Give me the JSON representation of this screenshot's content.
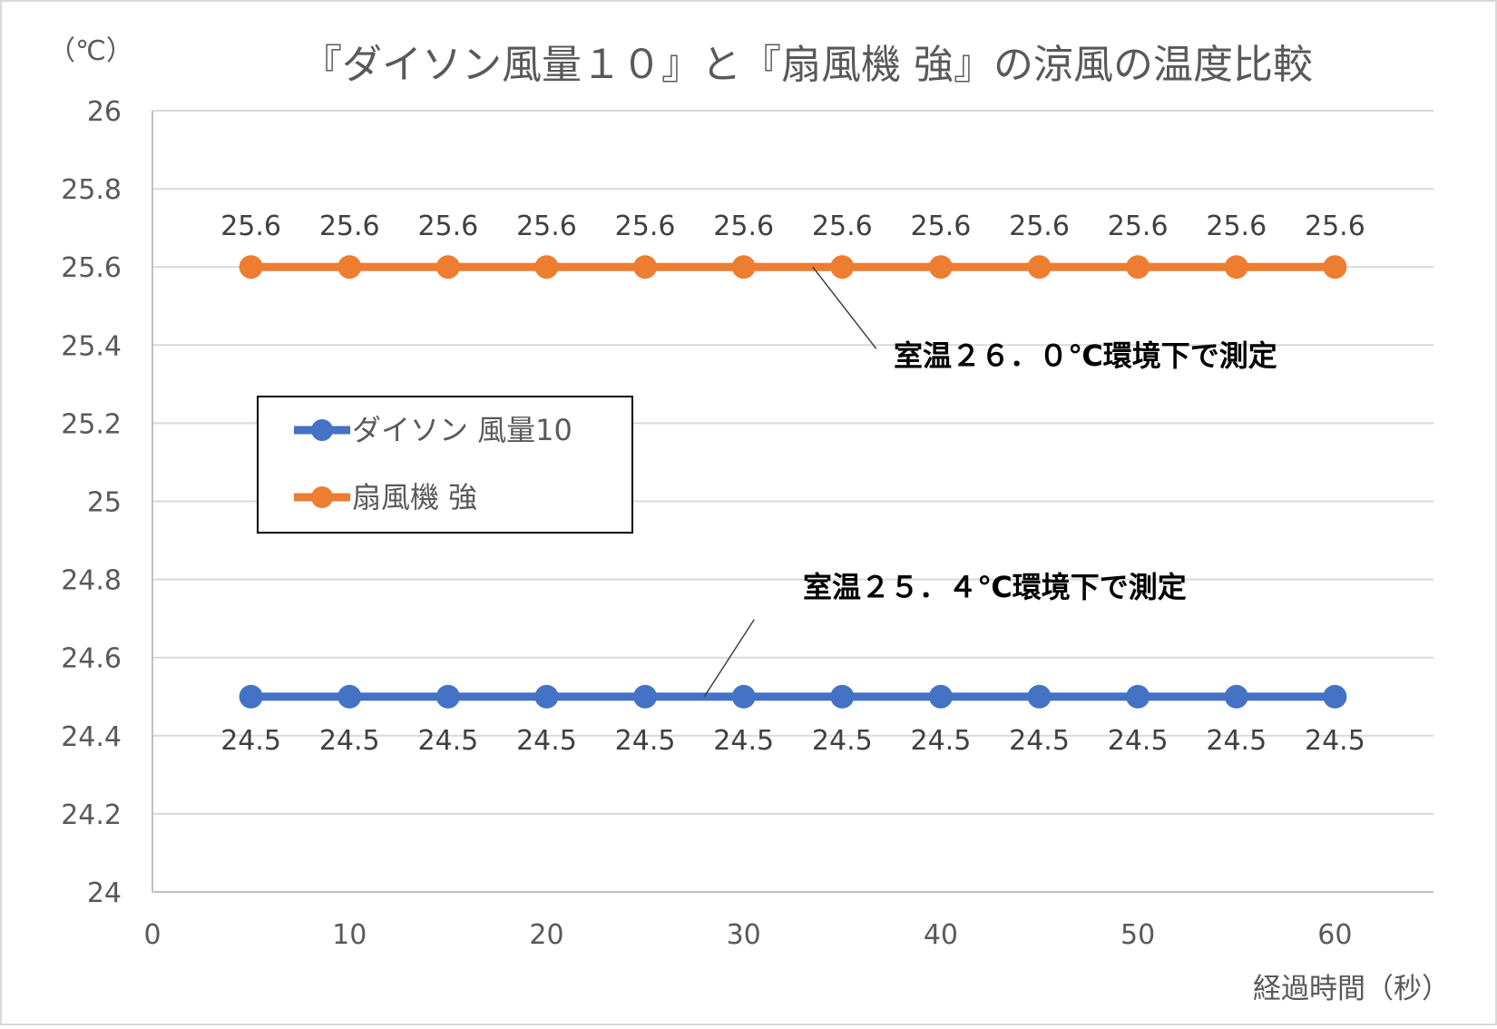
{
  "chart_data": {
    "type": "line",
    "title": "『ダイソン風量１０』と『扇風機 強』の涼風の温度比較",
    "ylabel": "（℃）",
    "xlabel": "経過時間（秒）",
    "x": [
      5,
      10,
      15,
      20,
      25,
      30,
      35,
      40,
      45,
      50,
      55,
      60
    ],
    "xlim": [
      0,
      65
    ],
    "ylim": [
      24,
      26
    ],
    "x_ticks": [
      0,
      10,
      20,
      30,
      40,
      50,
      60
    ],
    "x_tick_labels": [
      "0",
      "10",
      "20",
      "30",
      "40",
      "50",
      "60"
    ],
    "y_ticks": [
      24,
      24.2,
      24.4,
      24.6,
      24.8,
      25,
      25.2,
      25.4,
      25.6,
      25.8,
      26
    ],
    "y_tick_labels": [
      "24",
      "24.2",
      "24.4",
      "24.6",
      "24.8",
      "25",
      "25.2",
      "25.4",
      "25.6",
      "25.8",
      "26"
    ],
    "grid": true,
    "legend_position": "left",
    "series": [
      {
        "name": "ダイソン 風量10",
        "color": "#4472C4",
        "values": [
          24.5,
          24.5,
          24.5,
          24.5,
          24.5,
          24.5,
          24.5,
          24.5,
          24.5,
          24.5,
          24.5,
          24.5
        ],
        "value_labels": [
          "24.5",
          "24.5",
          "24.5",
          "24.5",
          "24.5",
          "24.5",
          "24.5",
          "24.5",
          "24.5",
          "24.5",
          "24.5",
          "24.5"
        ],
        "label_position": "below"
      },
      {
        "name": "扇風機 強",
        "color": "#ED7D31",
        "values": [
          25.6,
          25.6,
          25.6,
          25.6,
          25.6,
          25.6,
          25.6,
          25.6,
          25.6,
          25.6,
          25.6,
          25.6
        ],
        "value_labels": [
          "25.6",
          "25.6",
          "25.6",
          "25.6",
          "25.6",
          "25.6",
          "25.6",
          "25.6",
          "25.6",
          "25.6",
          "25.6",
          "25.6"
        ],
        "label_position": "above"
      }
    ],
    "annotations": [
      {
        "text": "室温２６．０℃環境下で測定",
        "series": "扇風機 強",
        "x": 33.5,
        "y": 25.6
      },
      {
        "text": "室温２５．４℃環境下で測定",
        "series": "ダイソン 風量10",
        "x": 28,
        "y": 24.5
      }
    ]
  }
}
